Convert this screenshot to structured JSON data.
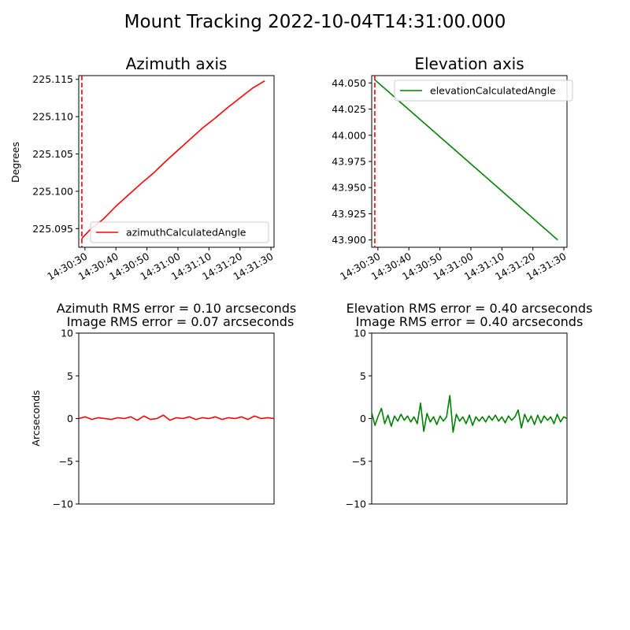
{
  "suptitle": "Mount Tracking 2022-10-04T14:31:00.000",
  "chart_data": [
    {
      "id": "az",
      "type": "line",
      "title": "Azimuth axis",
      "subtitle": "",
      "ylabel": "Degrees",
      "xlabel": "",
      "color": "#ff0000",
      "x_range": [
        "14:30:28",
        "14:31:31"
      ],
      "xlim_sec": [
        -32,
        31
      ],
      "ylim": [
        225.0925,
        225.1155
      ],
      "x_ticks": [
        "14:30:30",
        "14:30:40",
        "14:30:50",
        "14:31:00",
        "14:31:10",
        "14:31:20",
        "14:31:30"
      ],
      "x_tick_sec": [
        -30,
        -20,
        -10,
        0,
        10,
        20,
        30
      ],
      "y_ticks": [
        225.095,
        225.1,
        225.105,
        225.11,
        225.115
      ],
      "y_tick_labels": [
        "225.095",
        "225.100",
        "225.105",
        "225.110",
        "225.115"
      ],
      "legend": {
        "label": "azimuthCalculatedAngle",
        "position": "lower right"
      },
      "vline": {
        "x_sec": -31,
        "color": "#ff0000",
        "style": "dashed"
      },
      "series": [
        {
          "name": "azimuthCalculatedAngle",
          "x_sec": [
            -31,
            -28,
            -24,
            -20,
            -16,
            -12,
            -8,
            -4,
            0,
            4,
            8,
            12,
            16,
            20,
            24,
            28
          ],
          "values": [
            225.0937,
            225.095,
            225.0963,
            225.098,
            225.0995,
            225.101,
            225.1024,
            225.104,
            225.1055,
            225.107,
            225.1085,
            225.1098,
            225.1112,
            225.1125,
            225.1138,
            225.1148
          ]
        }
      ]
    },
    {
      "id": "el",
      "type": "line",
      "title": "Elevation axis",
      "subtitle": "",
      "ylabel": "",
      "xlabel": "",
      "color": "#008000",
      "x_range": [
        "14:30:28",
        "14:31:31"
      ],
      "xlim_sec": [
        -32,
        31
      ],
      "ylim": [
        43.893,
        44.057
      ],
      "x_ticks": [
        "14:30:30",
        "14:30:40",
        "14:30:50",
        "14:31:00",
        "14:31:10",
        "14:31:20",
        "14:31:30"
      ],
      "x_tick_sec": [
        -30,
        -20,
        -10,
        0,
        10,
        20,
        30
      ],
      "y_ticks": [
        43.9,
        43.925,
        43.95,
        43.975,
        44.0,
        44.025,
        44.05
      ],
      "y_tick_labels": [
        "43.900",
        "43.925",
        "43.950",
        "43.975",
        "44.000",
        "44.025",
        "44.050"
      ],
      "legend": {
        "label": "elevationCalculatedAngle",
        "position": "upper right"
      },
      "vline": {
        "x_sec": -31,
        "color": "#ff0000",
        "style": "dashed"
      },
      "series": [
        {
          "name": "elevationCalculatedAngle",
          "x_sec": [
            -31,
            28
          ],
          "values": [
            44.053,
            43.9
          ]
        }
      ]
    },
    {
      "id": "azerr",
      "type": "line",
      "title": "Azimuth RMS error = 0.10 arcseconds",
      "subtitle": "Image RMS error = 0.07 arcseconds",
      "ylabel": "Arcseconds",
      "xlabel": "",
      "color": "#ff0000",
      "x_range": [
        0,
        60
      ],
      "ylim": [
        -10,
        10
      ],
      "y_ticks": [
        -10,
        -5,
        0,
        5,
        10
      ],
      "y_tick_labels": [
        "−10",
        "−5",
        "0",
        "5",
        "10"
      ],
      "series": [
        {
          "name": "",
          "x": [
            0,
            2,
            4,
            6,
            8,
            10,
            12,
            14,
            16,
            18,
            20,
            22,
            24,
            26,
            28,
            30,
            32,
            34,
            36,
            38,
            40,
            42,
            44,
            46,
            48,
            50,
            52,
            54,
            56,
            58,
            60
          ],
          "values": [
            0.0,
            0.2,
            -0.1,
            0.1,
            0.0,
            -0.1,
            0.1,
            0.0,
            0.2,
            -0.2,
            0.3,
            -0.1,
            0.0,
            0.4,
            -0.2,
            0.1,
            0.0,
            0.2,
            -0.1,
            0.1,
            0.0,
            0.2,
            -0.1,
            0.1,
            0.0,
            0.2,
            -0.1,
            0.3,
            0.0,
            0.1,
            0.0
          ]
        }
      ]
    },
    {
      "id": "elerr",
      "type": "line",
      "title": "Elevation RMS error = 0.40 arcseconds",
      "subtitle": "Image RMS error = 0.40 arcseconds",
      "ylabel": "",
      "xlabel": "",
      "color": "#008000",
      "x_range": [
        0,
        60
      ],
      "ylim": [
        -10,
        10
      ],
      "y_ticks": [
        -10,
        -5,
        0,
        5,
        10
      ],
      "y_tick_labels": [
        "−10",
        "−5",
        "0",
        "5",
        "10"
      ],
      "series": [
        {
          "name": "",
          "x": [
            0,
            1,
            2,
            3,
            4,
            5,
            6,
            7,
            8,
            9,
            10,
            11,
            12,
            13,
            14,
            15,
            16,
            17,
            18,
            19,
            20,
            21,
            22,
            23,
            24,
            25,
            26,
            27,
            28,
            29,
            30,
            31,
            32,
            33,
            34,
            35,
            36,
            37,
            38,
            39,
            40,
            41,
            42,
            43,
            44,
            45,
            46,
            47,
            48,
            49,
            50,
            51,
            52,
            53,
            54,
            55,
            56,
            57,
            58,
            59,
            60
          ],
          "values": [
            0.7,
            -0.8,
            0.3,
            1.2,
            -0.6,
            0.4,
            -0.9,
            0.3,
            -0.3,
            0.5,
            -0.2,
            0.3,
            -0.4,
            0.2,
            -0.6,
            1.8,
            -1.5,
            0.6,
            -0.4,
            0.2,
            -0.7,
            0.3,
            -0.3,
            0.2,
            2.7,
            -1.6,
            0.5,
            -0.3,
            0.2,
            -0.6,
            0.4,
            -0.8,
            0.2,
            -0.3,
            0.2,
            -0.4,
            0.3,
            -0.2,
            0.4,
            -0.3,
            0.2,
            -0.5,
            0.3,
            -0.2,
            0.2,
            1.0,
            -1.1,
            0.5,
            -0.4,
            0.3,
            -0.7,
            0.4,
            -0.5,
            0.3,
            -0.2,
            0.2,
            -0.6,
            0.5,
            -0.4,
            0.2,
            0.0
          ]
        }
      ]
    }
  ]
}
